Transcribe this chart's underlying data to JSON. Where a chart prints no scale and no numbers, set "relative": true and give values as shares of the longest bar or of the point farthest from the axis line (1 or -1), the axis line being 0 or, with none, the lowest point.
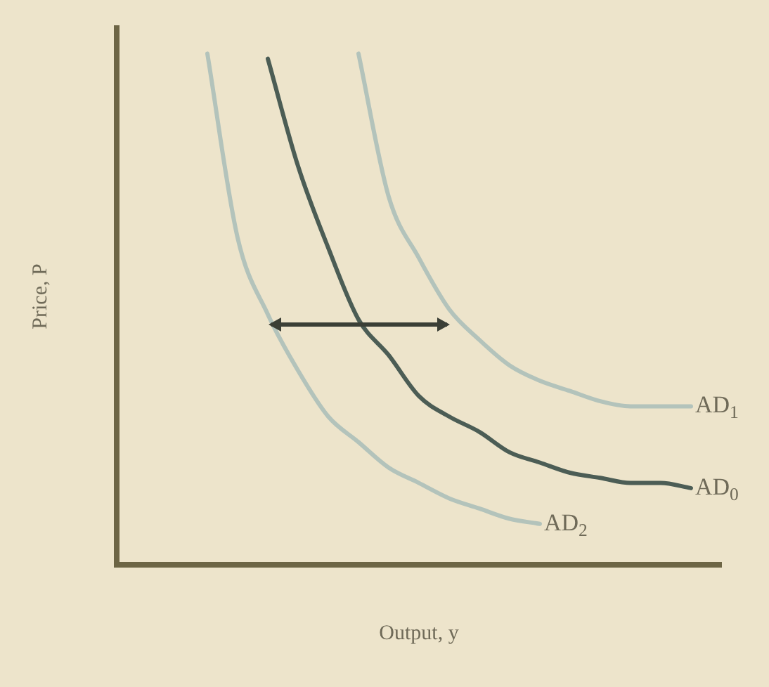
{
  "chart_data": {
    "type": "line",
    "relative": true,
    "xlabel": "Output, y",
    "ylabel": "Price, P",
    "legend": false,
    "grid": false,
    "marker": "none",
    "line_style": "solid",
    "categories": [
      null,
      null,
      null,
      null,
      null,
      null,
      null,
      null,
      null,
      null,
      null,
      null,
      null,
      null,
      null,
      null,
      null,
      null,
      null,
      null,
      null
    ],
    "series": [
      {
        "name": "AD$_{2}$",
        "color": "#b3c3bb",
        "values": [
          null,
          null,
          null,
          1.0,
          0.64,
          0.49,
          0.38,
          0.29,
          0.24,
          0.19,
          0.16,
          0.13,
          0.11,
          0.09,
          0.08,
          null,
          null,
          null,
          null,
          null,
          null
        ]
      },
      {
        "name": "AD$_{0}$",
        "color": "#4c5d55",
        "values": [
          null,
          null,
          null,
          null,
          null,
          0.99,
          0.78,
          0.62,
          0.48,
          0.41,
          0.33,
          0.29,
          0.26,
          0.22,
          0.2,
          0.18,
          0.17,
          0.16,
          0.16,
          0.15,
          null
        ]
      },
      {
        "name": "AD$_{1}$",
        "color": "#b3c3bb",
        "values": [
          null,
          null,
          null,
          null,
          null,
          null,
          null,
          null,
          1.0,
          0.72,
          0.6,
          0.5,
          0.44,
          0.39,
          0.36,
          0.34,
          0.32,
          0.31,
          0.31,
          0.31,
          null
        ]
      }
    ]
  }
}
